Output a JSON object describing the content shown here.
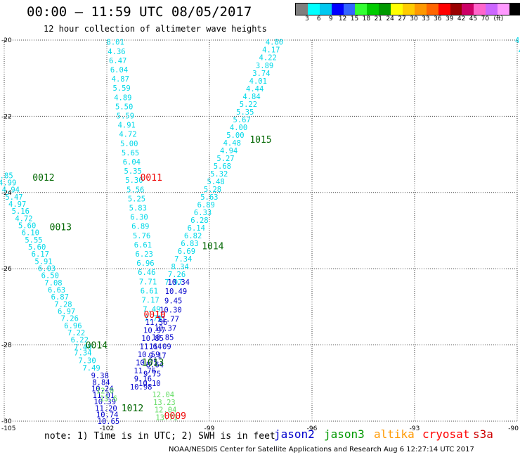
{
  "header": {
    "title": "00:00 – 11:59 UTC 08/05/2017",
    "subtitle": "12 hour collection of altimeter wave heights"
  },
  "colorbar": {
    "colors": [
      "#7f7f7f",
      "#00ffff",
      "#00c8f0",
      "#0000ff",
      "#3366ff",
      "#33ff33",
      "#00cc00",
      "#009900",
      "#ffff00",
      "#ffcc00",
      "#ff9900",
      "#ff6600",
      "#ff0000",
      "#990000",
      "#cc0066",
      "#ff66cc",
      "#cc66ff",
      "#ff99ff",
      "#000000"
    ],
    "labels": [
      "3",
      "6",
      "9",
      "12",
      "15",
      "18",
      "21",
      "24",
      "27",
      "30",
      "33",
      "36",
      "39",
      "42",
      "45",
      "70",
      "(ft)"
    ]
  },
  "note": "note: 1) Time is in UTC; 2) SWH is in feet",
  "satellites": [
    {
      "name": "jason2",
      "color": "#0000cc"
    },
    {
      "name": "jason3",
      "color": "#009900"
    },
    {
      "name": "altika",
      "color": "#ff9900"
    },
    {
      "name": "cryosat",
      "color": "#ff0000"
    },
    {
      "name": "s3a",
      "color": "#cc0000"
    }
  ],
  "footer": "NOAA/NESDIS Center for Satellite Applications and Research   Aug  6 12:27:14 UTC 2017",
  "chart_data": {
    "type": "scatter",
    "x_ticks": [
      "-105",
      "-102",
      "-99",
      "-96",
      "-93",
      "-90"
    ],
    "y_ticks": [
      "-20",
      "-22",
      "-24",
      "-26",
      "-28",
      "-30"
    ],
    "xlim": [
      -105,
      -90
    ],
    "ylim": [
      -30,
      -20
    ],
    "grid": true,
    "colors": {
      "cyan": "#00d8e8",
      "blue": "#0000cc",
      "green": "#006600",
      "lightgreen": "#66dd66",
      "red": "#ee0000"
    },
    "time_labels": [
      {
        "text": "0012",
        "lon": -103.85,
        "lat": -23.6,
        "color": "green"
      },
      {
        "text": "0013",
        "lon": -103.35,
        "lat": -24.9,
        "color": "green"
      },
      {
        "text": "0011",
        "lon": -100.7,
        "lat": -23.6,
        "color": "red"
      },
      {
        "text": "1015",
        "lon": -97.5,
        "lat": -22.6,
        "color": "green"
      },
      {
        "text": "1014",
        "lon": -98.9,
        "lat": -25.4,
        "color": "green"
      },
      {
        "text": "0010",
        "lon": -100.6,
        "lat": -27.2,
        "color": "red"
      },
      {
        "text": "0014",
        "lon": -102.3,
        "lat": -28.0,
        "color": "green"
      },
      {
        "text": "1013",
        "lon": -100.65,
        "lat": -28.45,
        "color": "green"
      },
      {
        "text": "1012",
        "lon": -101.25,
        "lat": -29.65,
        "color": "green"
      },
      {
        "text": "0009",
        "lon": -100.0,
        "lat": -29.85,
        "color": "red"
      }
    ],
    "tracks": [
      {
        "name": "track-a",
        "color": "cyan",
        "start": [
          -105.0,
          -23.55
        ],
        "end": [
          -102.7,
          -28.05
        ],
        "values": [
          "4.85",
          "4.99",
          "4.94",
          "5.47",
          "4.97",
          "5.16",
          "4.72",
          "5.60",
          "6.10",
          "5.55",
          "5.60",
          "6.17",
          "5.91",
          "6.03",
          "6.50",
          "7.08",
          "6.63",
          "6.87",
          "7.28",
          "6.97",
          "7.26",
          "6.96",
          "7.22",
          "6.22",
          "7.49"
        ]
      },
      {
        "name": "track-a-south",
        "color": "cyan",
        "start": [
          -102.7,
          -28.2
        ],
        "end": [
          -102.45,
          -28.6
        ],
        "values": [
          "7.34",
          "7.30",
          "7.49"
        ]
      },
      {
        "name": "track-a-blue",
        "color": "blue",
        "start": [
          -102.2,
          -28.8
        ],
        "end": [
          -101.95,
          -30.0
        ],
        "values": [
          "9.38",
          "8.84",
          "10.24",
          "11.01",
          "10.39",
          "11.20",
          "10.74",
          "10.65"
        ]
      },
      {
        "name": "track-a-lightgreen",
        "color": "lightgreen",
        "start": [
          -102.05,
          -29.2
        ],
        "end": [
          -101.95,
          -29.4
        ],
        "values": [
          "12.0",
          "13.6"
        ]
      },
      {
        "name": "track-b",
        "color": "cyan",
        "start": [
          -101.75,
          -20.05
        ],
        "end": [
          -100.65,
          -27.3
        ],
        "values": [
          "8.01",
          "4.36",
          "6.47",
          "6.04",
          "4.87",
          "5.59",
          "4.89",
          "5.50",
          "5.59",
          "4.91",
          "4.72",
          "5.00",
          "5.65",
          "6.04",
          "5.35",
          "5.30",
          "5.56",
          "5.25",
          "5.83",
          "6.30",
          "6.89",
          "5.76",
          "6.61",
          "6.23",
          "6.96",
          "6.46",
          "7.71",
          "6.61",
          "7.17",
          "7.49",
          "7.79"
        ]
      },
      {
        "name": "track-b-blue",
        "color": "blue",
        "start": [
          -100.55,
          -27.4
        ],
        "end": [
          -101.0,
          -29.1
        ],
        "values": [
          "11.36",
          "10.97",
          "10.85",
          "11.64",
          "10.59",
          "10.75",
          "11.76",
          "9.16",
          "10.98"
        ]
      },
      {
        "name": "track-c",
        "color": "cyan",
        "start": [
          -97.1,
          -20.05
        ],
        "end": [
          -100.05,
          -26.35
        ],
        "values": [
          "4.80",
          "4.17",
          "4.22",
          "3.89",
          "3.74",
          "4.01",
          "4.44",
          "4.84",
          "5.22",
          "5.35",
          "5.67",
          "4.00",
          "5.00",
          "4.48",
          "4.94",
          "5.27",
          "5.68",
          "5.32",
          "5.48",
          "5.28",
          "5.63",
          "6.89",
          "6.33",
          "6.28",
          "6.14",
          "6.82",
          "6.83",
          "6.69",
          "7.34",
          "8.34",
          "7.26",
          "7.97"
        ]
      },
      {
        "name": "track-c-blue",
        "color": "blue",
        "start": [
          -99.9,
          -26.35
        ],
        "end": [
          -100.75,
          -29.0
        ],
        "values": [
          "10.34",
          "10.49",
          "9.45",
          "10.30",
          "11.77",
          "10.37",
          "10.85",
          "11.09",
          "9.17",
          "8.64",
          "9.75",
          "10.10"
        ]
      },
      {
        "name": "track-c-lightgreen",
        "color": "lightgreen",
        "start": [
          -100.35,
          -29.3
        ],
        "end": [
          -100.25,
          -29.9
        ],
        "values": [
          "12.04",
          "13.23",
          "12.04",
          "13.71"
        ]
      },
      {
        "name": "track-d",
        "color": "cyan",
        "start": [
          -90.0,
          -20.0
        ],
        "end": [
          -89.8,
          -20.55
        ],
        "values": [
          "4",
          "4",
          "4"
        ]
      }
    ]
  }
}
